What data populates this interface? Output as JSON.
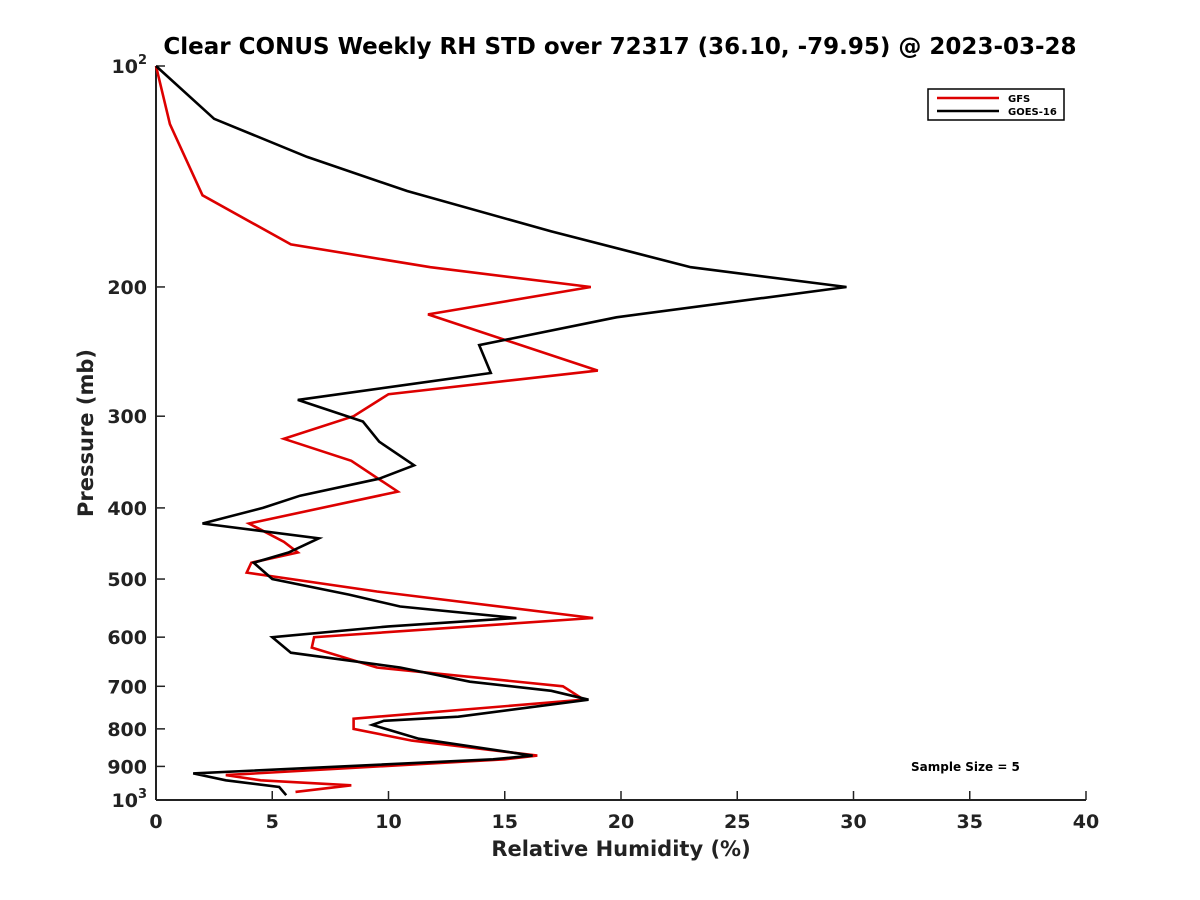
{
  "chart_data": {
    "type": "line",
    "title": "Clear CONUS Weekly RH STD over 72317 (36.10, -79.95) @ 2023-03-28",
    "xlabel": "Relative Humidity (%)",
    "ylabel": "Pressure (mb)",
    "xlim": [
      0,
      40
    ],
    "ylim": [
      100,
      1000
    ],
    "yscale": "log",
    "y_reversed": true,
    "x_ticks": [
      0,
      5,
      10,
      15,
      20,
      25,
      30,
      35,
      40
    ],
    "x_tick_labels": [
      "0",
      "5",
      "10",
      "15",
      "20",
      "25",
      "30",
      "35",
      "40"
    ],
    "y_ticks": [
      {
        "value": 100,
        "base": "10",
        "exp": "2"
      },
      {
        "value": 200,
        "label": "200"
      },
      {
        "value": 300,
        "label": "300"
      },
      {
        "value": 400,
        "label": "400"
      },
      {
        "value": 500,
        "label": "500"
      },
      {
        "value": 600,
        "label": "600"
      },
      {
        "value": 700,
        "label": "700"
      },
      {
        "value": 800,
        "label": "800"
      },
      {
        "value": 900,
        "label": "900"
      },
      {
        "value": 1000,
        "base": "10",
        "exp": "3"
      }
    ],
    "grid": false,
    "legend_position": "top-right",
    "annotation": "Sample Size = 5",
    "series": [
      {
        "name": "GFS",
        "color": "#dd0000",
        "points": [
          [
            0.0,
            100
          ],
          [
            0.6,
            120
          ],
          [
            2.0,
            150
          ],
          [
            5.8,
            175
          ],
          [
            11.8,
            188
          ],
          [
            18.7,
            200
          ],
          [
            11.7,
            218
          ],
          [
            19.0,
            260
          ],
          [
            10.0,
            280
          ],
          [
            8.5,
            300
          ],
          [
            5.5,
            322
          ],
          [
            8.4,
            345
          ],
          [
            10.4,
            380
          ],
          [
            4.0,
            420
          ],
          [
            5.5,
            445
          ],
          [
            6.1,
            460
          ],
          [
            4.1,
            475
          ],
          [
            3.9,
            490
          ],
          [
            9.5,
            520
          ],
          [
            18.8,
            565
          ],
          [
            6.8,
            600
          ],
          [
            6.7,
            620
          ],
          [
            9.5,
            660
          ],
          [
            17.5,
            700
          ],
          [
            18.4,
            730
          ],
          [
            8.5,
            775
          ],
          [
            8.5,
            800
          ],
          [
            11.0,
            830
          ],
          [
            16.4,
            870
          ],
          [
            15.0,
            880
          ],
          [
            3.0,
            925
          ],
          [
            4.5,
            940
          ],
          [
            8.4,
            955
          ],
          [
            6.0,
            975
          ]
        ]
      },
      {
        "name": "GOES-16",
        "color": "#000000",
        "points": [
          [
            0.0,
            100
          ],
          [
            2.5,
            118
          ],
          [
            6.5,
            133
          ],
          [
            10.8,
            148
          ],
          [
            17.0,
            168
          ],
          [
            23.0,
            188
          ],
          [
            29.7,
            200
          ],
          [
            19.8,
            220
          ],
          [
            13.9,
            240
          ],
          [
            14.4,
            262
          ],
          [
            6.1,
            285
          ],
          [
            8.9,
            305
          ],
          [
            9.6,
            325
          ],
          [
            11.1,
            350
          ],
          [
            9.6,
            365
          ],
          [
            6.2,
            385
          ],
          [
            4.6,
            400
          ],
          [
            2.0,
            420
          ],
          [
            7.0,
            440
          ],
          [
            5.7,
            460
          ],
          [
            4.2,
            475
          ],
          [
            5.0,
            500
          ],
          [
            8.3,
            525
          ],
          [
            10.5,
            545
          ],
          [
            15.5,
            565
          ],
          [
            10.0,
            580
          ],
          [
            5.0,
            600
          ],
          [
            5.8,
            630
          ],
          [
            10.5,
            660
          ],
          [
            13.5,
            690
          ],
          [
            17.0,
            710
          ],
          [
            18.6,
            730
          ],
          [
            13.0,
            770
          ],
          [
            9.8,
            780
          ],
          [
            9.3,
            790
          ],
          [
            11.3,
            825
          ],
          [
            16.2,
            870
          ],
          [
            14.5,
            880
          ],
          [
            1.6,
            920
          ],
          [
            3.0,
            940
          ],
          [
            5.3,
            960
          ],
          [
            5.6,
            985
          ]
        ]
      }
    ]
  }
}
